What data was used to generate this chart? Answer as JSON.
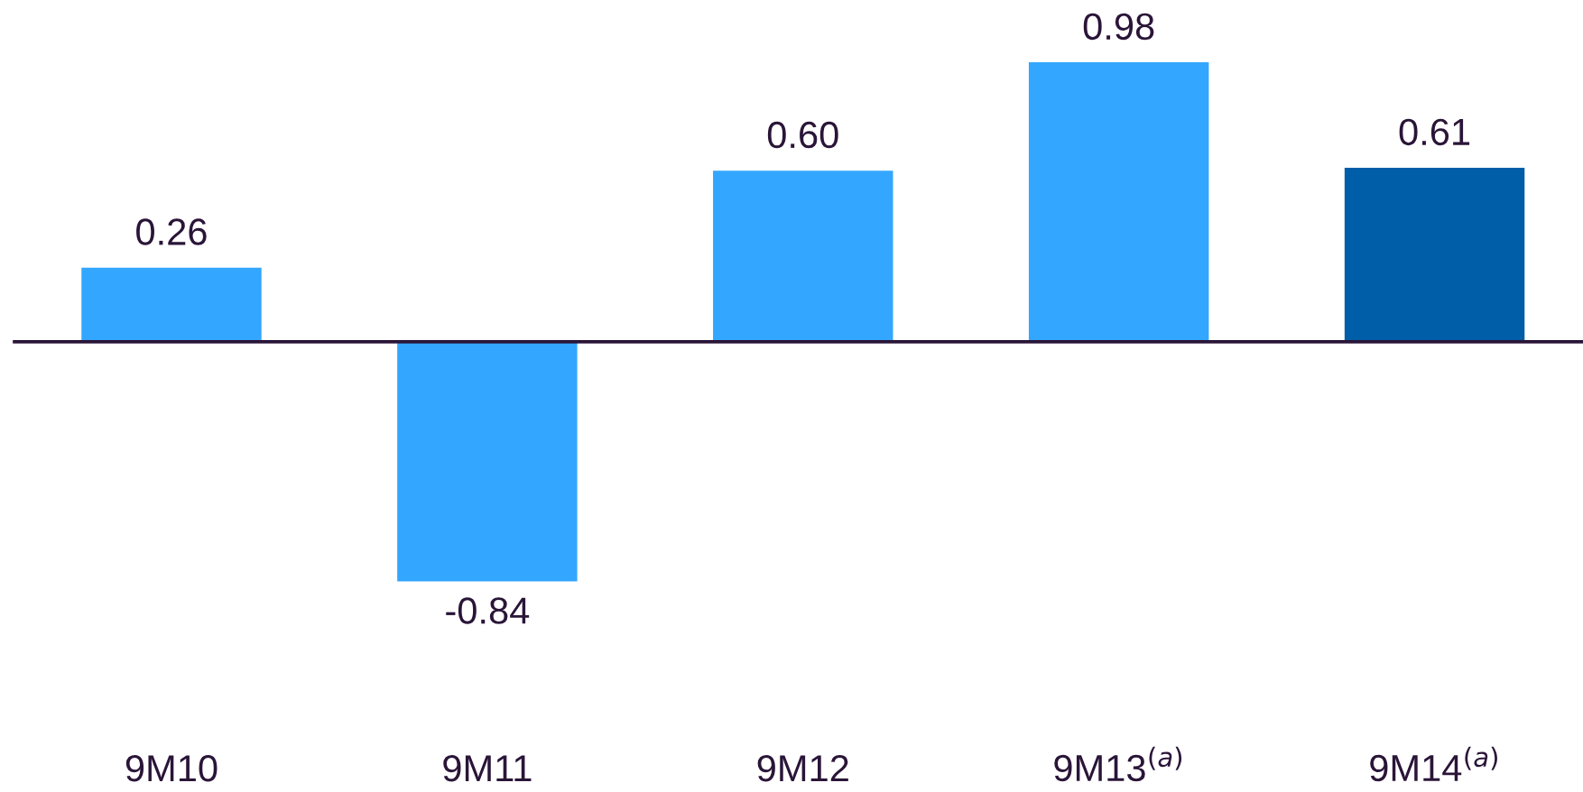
{
  "chart_data": {
    "type": "bar",
    "categories": [
      "9M10",
      "9M11",
      "9M12",
      "9M13$^{(a)}$",
      "9M14$^{(a)}$"
    ],
    "values": [
      0.26,
      -0.84,
      0.6,
      0.98,
      0.61
    ],
    "colors": [
      "#33a6ff",
      "#33a6ff",
      "#33a6ff",
      "#33a6ff",
      "#005ea8"
    ],
    "data_labels": true,
    "value_labels": [
      "0.26",
      "-0.84",
      "0.60",
      "0.98",
      "0.61"
    ],
    "grid": false,
    "legend": false
  }
}
